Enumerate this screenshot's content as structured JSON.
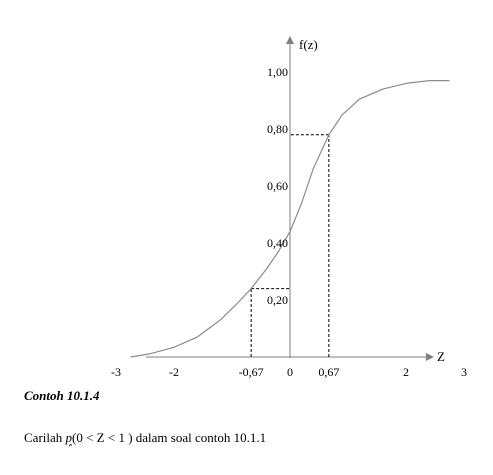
{
  "chart_data": {
    "type": "line",
    "ylabel": "f(z)",
    "xlabel": "Z",
    "x_ticks": [
      "-3",
      "-2",
      "-0,67",
      "0",
      "0,67",
      "2",
      "3"
    ],
    "x_tick_values": [
      -3,
      -2,
      -0.67,
      0,
      0.67,
      2,
      3
    ],
    "y_ticks": [
      "0,20",
      "0,40",
      "0,60",
      "0,80",
      "1,00"
    ],
    "y_tick_values": [
      0.2,
      0.4,
      0.6,
      0.8,
      1.0
    ],
    "xlim": [
      -3.2,
      3.2
    ],
    "ylim": [
      0,
      1.05
    ],
    "series": [
      {
        "x": [
          -2.75,
          -2.4,
          -2.0,
          -1.6,
          -1.2,
          -0.9,
          -0.67,
          -0.4,
          -0.2,
          0,
          0.2,
          0.4,
          0.67,
          0.9,
          1.2,
          1.6,
          2.0,
          2.4,
          2.75
        ],
        "y": [
          0.0,
          0.012,
          0.034,
          0.07,
          0.13,
          0.19,
          0.24,
          0.31,
          0.37,
          0.44,
          0.54,
          0.66,
          0.78,
          0.85,
          0.905,
          0.94,
          0.96,
          0.97,
          0.97
        ]
      }
    ],
    "reference_lines": [
      {
        "x": -0.67,
        "y": 0.24
      },
      {
        "x": 0.67,
        "y": 0.78
      }
    ],
    "grid": false
  },
  "example": {
    "heading": "Contoh 10.1.4",
    "text_before": "Carilah ",
    "symbol": "p",
    "text_after": "(0 < Z < 1 ) dalam soal contoh 10.1.1"
  },
  "colors": {
    "curve": "#8c8c8c",
    "axis": "#7f7f7f",
    "guide": "#000000"
  }
}
